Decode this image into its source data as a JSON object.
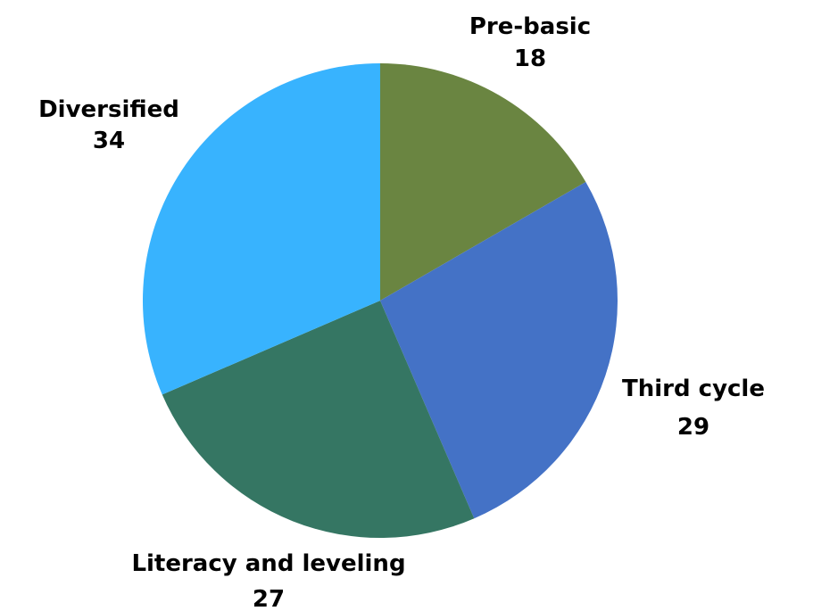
{
  "chart_data": {
    "type": "pie",
    "title": "",
    "start_angle_deg": 0,
    "direction": "clockwise",
    "legend": "none",
    "slices": [
      {
        "label": "Pre-basic",
        "value": 18,
        "value_label": "18",
        "color": "#6a8541"
      },
      {
        "label": "Third cycle",
        "value": 29,
        "value_label": "29",
        "color": "#4472c6"
      },
      {
        "label": "Literacy and leveling",
        "value": 27,
        "value_label": "27",
        "color": "#357663"
      },
      {
        "label": "Diversified",
        "value": 34,
        "value_label": "34",
        "color": "#38b3fe"
      }
    ]
  }
}
